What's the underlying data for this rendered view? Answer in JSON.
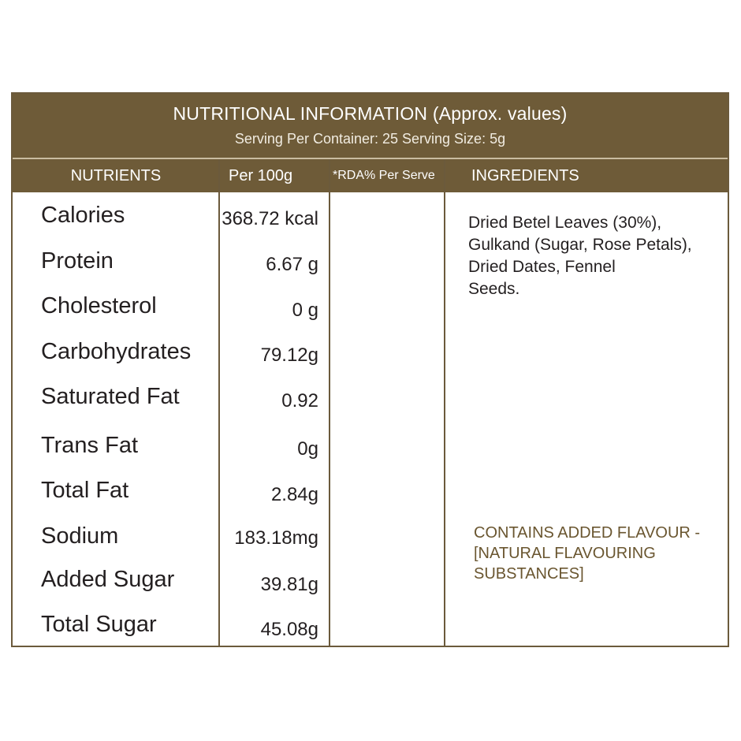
{
  "header": {
    "title": "NUTRITIONAL INFORMATION  (Approx. values)",
    "subtitle": "Serving Per Container: 25 Serving Size: 5g"
  },
  "columns": {
    "nutrients": "NUTRIENTS",
    "per100g": "Per 100g",
    "rda": "*RDA% Per Serve",
    "ingredients": "INGREDIENTS"
  },
  "rows": [
    {
      "name": "Calories",
      "value": "368.72 kcal"
    },
    {
      "name": "Protein",
      "value": "6.67 g"
    },
    {
      "name": "Cholesterol",
      "value": "0 g"
    },
    {
      "name": "Carbohydrates",
      "value": "79.12g"
    },
    {
      "name": "Saturated Fat",
      "value": "0.92"
    },
    {
      "name": "Trans Fat",
      "value": "0g"
    },
    {
      "name": "Total Fat",
      "value": "2.84g"
    },
    {
      "name": "Sodium",
      "value": "183.18mg"
    },
    {
      "name": "Added Sugar",
      "value": "39.81g"
    },
    {
      "name": "Total Sugar",
      "value": "45.08g"
    }
  ],
  "ingredients_text": "Dried Betel Leaves (30%),\nGulkand (Sugar, Rose Petals),\nDried Dates, Fennel\nSeeds.",
  "flavour_note": "CONTAINS ADDED FLAVOUR -\n[NATURAL FLAVOURING\nSUBSTANCES]",
  "colors": {
    "header_bg": "#6e5b38",
    "border": "#6b5a3c",
    "flavour_text": "#6a5630"
  }
}
